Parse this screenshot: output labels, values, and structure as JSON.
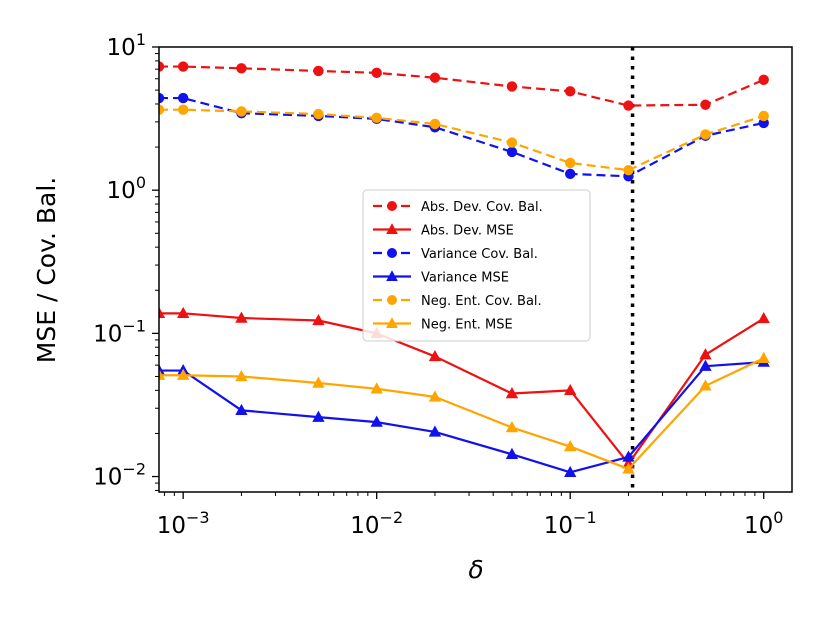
{
  "chart_data": {
    "type": "line",
    "xlabel": "δ",
    "ylabel": "MSE / Cov. Bal.",
    "xscale": "log",
    "yscale": "log",
    "xlim": [
      0.00075,
      1.4
    ],
    "ylim": [
      0.0078,
      10
    ],
    "x_ticks": [
      {
        "value": 0.001,
        "base": "10",
        "exp": "−3"
      },
      {
        "value": 0.01,
        "base": "10",
        "exp": "−2"
      },
      {
        "value": 0.1,
        "base": "10",
        "exp": "−1"
      },
      {
        "value": 1,
        "base": "10",
        "exp": "0"
      }
    ],
    "y_ticks": [
      {
        "value": 0.01,
        "base": "10",
        "exp": "−2"
      },
      {
        "value": 0.1,
        "base": "10",
        "exp": "−1"
      },
      {
        "value": 1,
        "base": "10",
        "exp": "0"
      },
      {
        "value": 10,
        "base": "10",
        "exp": "1"
      }
    ],
    "vline": {
      "x": 0.21,
      "style": "dotted",
      "color": "#000000"
    },
    "legend": {
      "position": "center"
    },
    "grid": false,
    "x": [
      0.00075,
      0.001,
      0.002,
      0.005,
      0.01,
      0.02,
      0.05,
      0.1,
      0.2,
      0.5,
      1
    ],
    "series": [
      {
        "name": "Abs. Dev. Cov. Bal.",
        "color": "#ee1111",
        "dash": true,
        "marker": "circle",
        "values": [
          7.3,
          7.3,
          7.1,
          6.8,
          6.6,
          6.1,
          5.3,
          4.9,
          3.9,
          3.95,
          5.9
        ]
      },
      {
        "name": "Abs. Dev. MSE",
        "color": "#ee1111",
        "dash": false,
        "marker": "triangle",
        "values": [
          0.138,
          0.138,
          0.128,
          0.123,
          0.1,
          0.069,
          0.038,
          0.04,
          0.0123,
          0.071,
          0.127
        ]
      },
      {
        "name": "Variance Cov. Bal.",
        "color": "#1111ee",
        "dash": true,
        "marker": "circle",
        "values": [
          4.4,
          4.4,
          3.45,
          3.3,
          3.15,
          2.75,
          1.85,
          1.3,
          1.25,
          2.4,
          2.95
        ]
      },
      {
        "name": "Variance MSE",
        "color": "#1111ee",
        "dash": false,
        "marker": "triangle",
        "values": [
          0.055,
          0.055,
          0.029,
          0.026,
          0.024,
          0.0205,
          0.0143,
          0.0107,
          0.0137,
          0.059,
          0.063
        ]
      },
      {
        "name": "Neg. Ent. Cov. Bal.",
        "color": "#ffa500",
        "dash": true,
        "marker": "circle",
        "values": [
          3.65,
          3.65,
          3.55,
          3.4,
          3.2,
          2.9,
          2.15,
          1.55,
          1.38,
          2.45,
          3.3
        ]
      },
      {
        "name": "Neg. Ent. MSE",
        "color": "#ffa500",
        "dash": false,
        "marker": "triangle",
        "values": [
          0.051,
          0.051,
          0.05,
          0.045,
          0.041,
          0.036,
          0.022,
          0.0162,
          0.0113,
          0.043,
          0.067
        ]
      }
    ]
  }
}
